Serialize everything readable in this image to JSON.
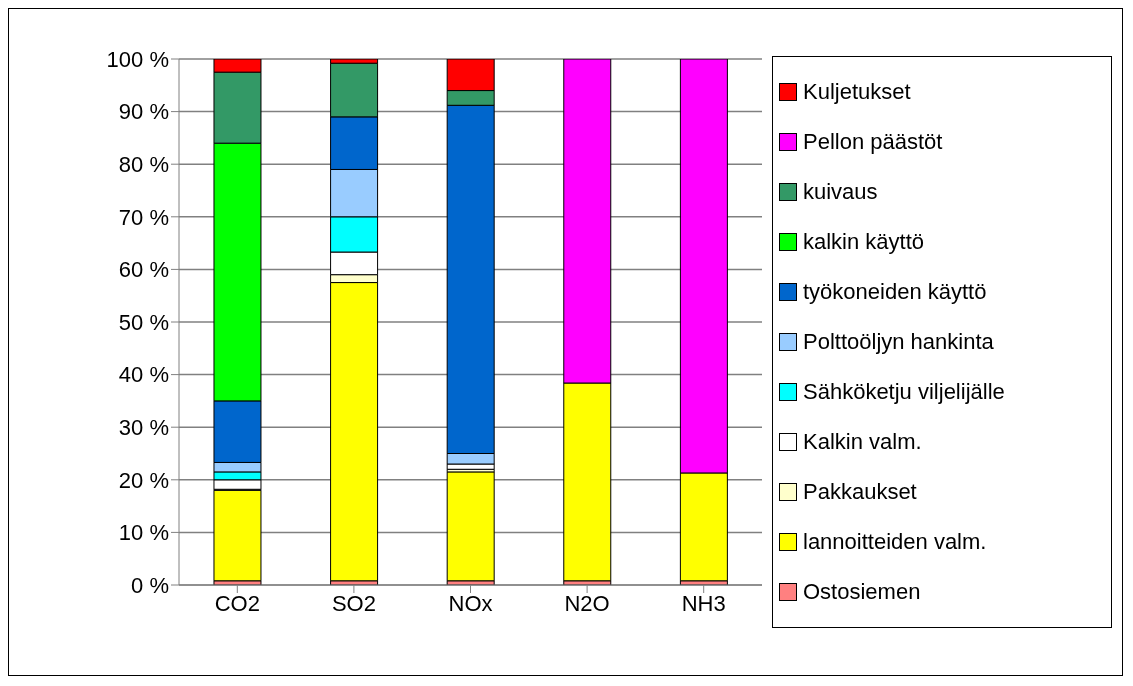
{
  "chart_data": {
    "type": "bar",
    "stacked": true,
    "categories": [
      "CO2",
      "SO2",
      "NOx",
      "N2O",
      "NH3"
    ],
    "series": [
      {
        "name": "Ostosiemen",
        "color": "#ff8080",
        "values": [
          0.8,
          0.8,
          0.8,
          0.8,
          0.8
        ]
      },
      {
        "name": "lannoitteiden valm.",
        "color": "#ffff00",
        "values": [
          17.2,
          56.7,
          20.7,
          37.6,
          20.5
        ]
      },
      {
        "name": "Pakkaukset",
        "color": "#ffffcc",
        "values": [
          0.2,
          1.5,
          0.5,
          0,
          0
        ]
      },
      {
        "name": "Kalkin valm.",
        "color": "#ffffff",
        "values": [
          1.8,
          4.3,
          1,
          0,
          0
        ]
      },
      {
        "name": "Sähköketju viljelijälle",
        "color": "#00ffff",
        "values": [
          1.5,
          6.7,
          0,
          0,
          0
        ]
      },
      {
        "name": "Polttoöljyn hankinta",
        "color": "#99ccff",
        "values": [
          1.8,
          9,
          2,
          0,
          0
        ]
      },
      {
        "name": "työkoneiden käyttö",
        "color": "#0066cc",
        "values": [
          11.7,
          10,
          66.2,
          0,
          0
        ]
      },
      {
        "name": "kalkin käyttö",
        "color": "#00ff00",
        "values": [
          49,
          0,
          0,
          0,
          0
        ]
      },
      {
        "name": "kuivaus",
        "color": "#339966",
        "values": [
          13.5,
          10.2,
          2.8,
          0,
          0
        ]
      },
      {
        "name": "Pellon päästöt",
        "color": "#ff00ff",
        "values": [
          0,
          0,
          0,
          61.6,
          78.7
        ]
      },
      {
        "name": "Kuljetukset",
        "color": "#ff0000",
        "values": [
          2.5,
          0.8,
          6,
          0,
          0
        ]
      }
    ],
    "ylim": [
      0,
      100
    ],
    "yticks": [
      {
        "value": 0,
        "label": "0 %"
      },
      {
        "value": 10,
        "label": "10 %"
      },
      {
        "value": 20,
        "label": "20 %"
      },
      {
        "value": 30,
        "label": "30 %"
      },
      {
        "value": 40,
        "label": "40 %"
      },
      {
        "value": 50,
        "label": "50 %"
      },
      {
        "value": 60,
        "label": "60 %"
      },
      {
        "value": 70,
        "label": "70 %"
      },
      {
        "value": 80,
        "label": "80 %"
      },
      {
        "value": 90,
        "label": "90 %"
      },
      {
        "value": 100,
        "label": "100 %"
      }
    ],
    "grid": "y",
    "legend": "right"
  }
}
